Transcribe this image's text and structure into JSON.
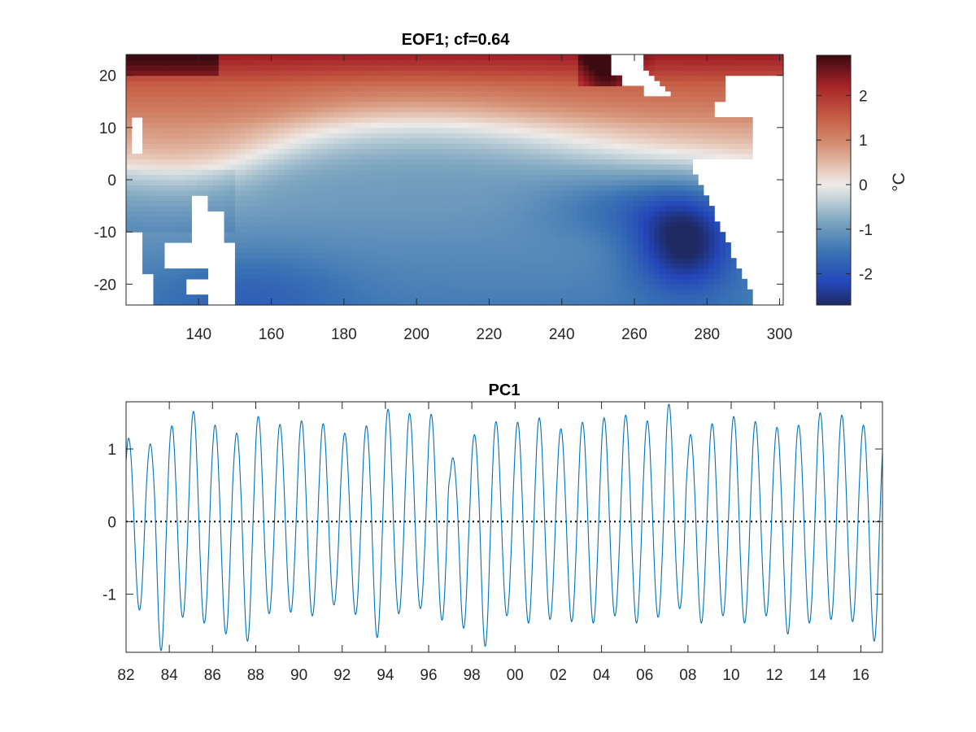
{
  "figure": {
    "background": "#ffffff"
  },
  "chart_data": [
    {
      "type": "heatmap",
      "title": "EOF1; cf=0.64",
      "xlabel": "",
      "ylabel": "",
      "xlim": [
        120,
        301
      ],
      "ylim": [
        -24,
        24
      ],
      "xticks": [
        140,
        160,
        180,
        200,
        220,
        240,
        260,
        280,
        300
      ],
      "xtick_labels": [
        "140",
        "160",
        "180",
        "200",
        "220",
        "240",
        "260",
        "280",
        "300"
      ],
      "yticks": [
        20,
        10,
        0,
        -10,
        -20
      ],
      "ytick_labels": [
        "20",
        "10",
        "0",
        "-10",
        "-20"
      ],
      "grid": false,
      "colormap": "diverging blue-white-red (balance)",
      "colormap_stops": [
        {
          "v": -2.7,
          "color": "#1f2a63"
        },
        {
          "v": -2.2,
          "color": "#2446b8"
        },
        {
          "v": -1.5,
          "color": "#3a74b4"
        },
        {
          "v": -0.8,
          "color": "#7fa7c0"
        },
        {
          "v": -0.2,
          "color": "#d4dde0"
        },
        {
          "v": 0.0,
          "color": "#eeeae8"
        },
        {
          "v": 0.3,
          "color": "#e8cdbf"
        },
        {
          "v": 0.9,
          "color": "#d48f73"
        },
        {
          "v": 1.5,
          "color": "#c65e45"
        },
        {
          "v": 2.2,
          "color": "#a72429"
        },
        {
          "v": 2.9,
          "color": "#3c0a10"
        }
      ],
      "field_description": "Leading EOF of sea surface temperature over the tropical Pacific: positive (red) north of ~2N, negative (blue) to the south with minimum near the South American coast (~275E, 15S)",
      "missing_value_color": "#ffffff",
      "colorbar": {
        "label": "°C",
        "lim": [
          -2.7,
          2.9
        ],
        "ticks": [
          2,
          1,
          0,
          -1,
          -2
        ],
        "tick_labels": [
          "2",
          "1",
          "0",
          "-1",
          "-2"
        ],
        "location": "right"
      }
    },
    {
      "type": "line",
      "title": "PC1",
      "xlabel": "",
      "ylabel": "",
      "x_units": "year",
      "xlim": [
        1982,
        2017
      ],
      "ylim": [
        -1.8,
        1.65
      ],
      "xticks": [
        1982,
        1984,
        1986,
        1988,
        1990,
        1992,
        1994,
        1996,
        1998,
        2000,
        2002,
        2004,
        2006,
        2008,
        2010,
        2012,
        2014,
        2016
      ],
      "xtick_labels": [
        "82",
        "84",
        "86",
        "88",
        "90",
        "92",
        "94",
        "96",
        "98",
        "00",
        "02",
        "04",
        "06",
        "08",
        "10",
        "12",
        "14",
        "16"
      ],
      "yticks": [
        1,
        0,
        -1
      ],
      "ytick_labels": [
        "1",
        "0",
        "-1"
      ],
      "grid": false,
      "reference_line": {
        "y": 0,
        "style": "dotted",
        "color": "#000000"
      },
      "series": [
        {
          "color": "#0072bd",
          "description": "Monthly PC1, strongly seasonal (period 1 year)",
          "annual_peaks": [
            1.15,
            1.07,
            1.32,
            1.52,
            1.33,
            1.22,
            1.45,
            1.34,
            1.39,
            1.35,
            1.22,
            1.32,
            1.55,
            1.49,
            1.48,
            0.88,
            1.2,
            1.38,
            1.37,
            1.43,
            1.28,
            1.37,
            1.43,
            1.47,
            1.39,
            1.62,
            1.2,
            1.35,
            1.45,
            1.38,
            1.3,
            1.33,
            1.5,
            1.47,
            1.33
          ],
          "annual_troughs": [
            -1.22,
            -1.78,
            -1.32,
            -1.4,
            -1.55,
            -1.65,
            -1.27,
            -1.25,
            -1.3,
            -1.15,
            -1.28,
            -1.6,
            -1.27,
            -1.2,
            -1.36,
            -1.47,
            -1.72,
            -1.3,
            -1.4,
            -1.35,
            -1.38,
            -1.4,
            -1.3,
            -1.4,
            -1.32,
            -1.2,
            -1.4,
            -1.3,
            -1.4,
            -1.3,
            -1.55,
            -1.4,
            -1.35,
            -1.38,
            -1.65
          ]
        }
      ]
    }
  ]
}
